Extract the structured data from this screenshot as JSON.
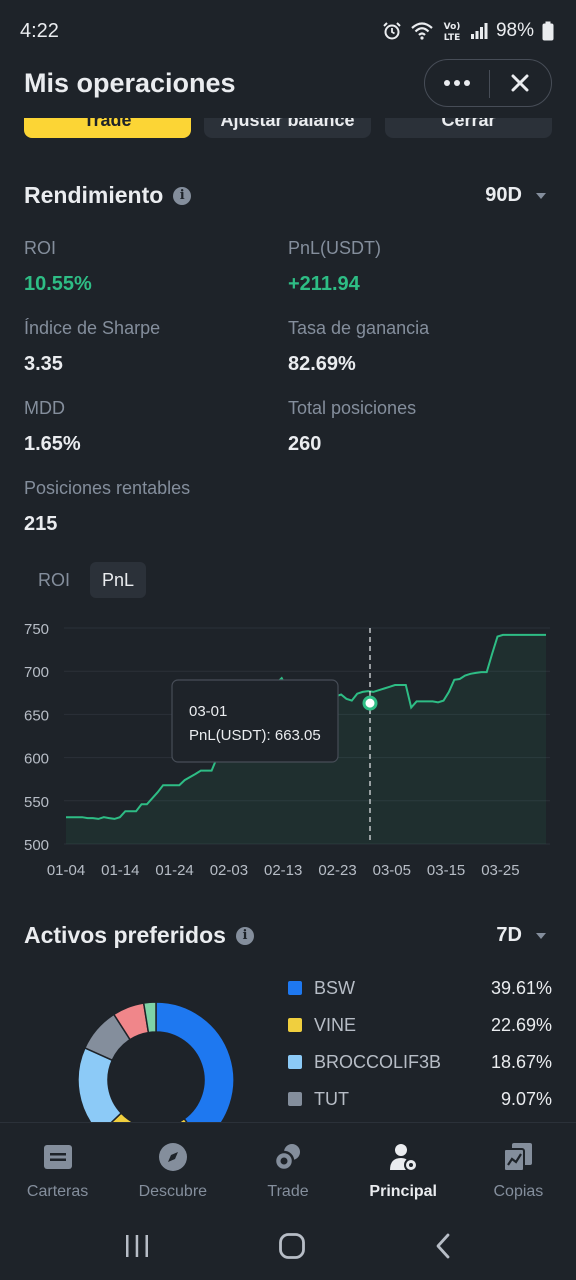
{
  "status_bar": {
    "time": "4:22",
    "battery": "98%"
  },
  "header": {
    "title": "Mis operaciones",
    "more_label": "•••",
    "close_label": "✕"
  },
  "top_tabs": [
    "Trade",
    "Ajustar balance",
    "Cerrar"
  ],
  "performance": {
    "title": "Rendimiento",
    "period": "90D",
    "stats": {
      "roi": {
        "label": "ROI",
        "value": "10.55%"
      },
      "pnl": {
        "label": "PnL(USDT)",
        "value": "+211.94"
      },
      "sharpe": {
        "label": "Índice de Sharpe",
        "value": "3.35"
      },
      "win_rate": {
        "label": "Tasa de ganancia",
        "value": "82.69%"
      },
      "mdd": {
        "label": "MDD",
        "value": "1.65%"
      },
      "total_positions": {
        "label": "Total posiciones",
        "value": "260"
      },
      "profitable_positions": {
        "label": "Posiciones rentables",
        "value": "215"
      }
    },
    "chart_tabs": [
      "ROI",
      "PnL"
    ],
    "active_chart_tab": "PnL"
  },
  "tooltip": {
    "date": "03-01",
    "label": "PnL(USDT): 663.05"
  },
  "chart_data": {
    "type": "area",
    "title": "",
    "xlabel": "",
    "ylabel": "",
    "ylim": [
      500,
      750
    ],
    "y_ticks": [
      "750",
      "700",
      "650",
      "600",
      "550",
      "500"
    ],
    "x_ticks": [
      "01-04",
      "01-14",
      "01-24",
      "02-03",
      "02-13",
      "02-23",
      "03-05",
      "03-15",
      "03-25"
    ],
    "line_color": "#2ebd85",
    "grid": true,
    "series": [
      {
        "x": [
          0,
          3,
          4,
          5,
          6,
          7,
          8,
          9,
          10,
          11,
          12,
          13,
          14,
          15,
          17,
          18,
          20,
          21,
          22,
          24,
          25,
          26,
          27,
          28,
          29,
          30,
          31,
          32,
          33,
          34,
          35,
          36,
          37,
          39,
          40,
          41,
          42,
          43,
          44,
          45,
          46,
          47,
          48,
          49,
          50,
          51,
          52,
          53,
          54,
          55,
          56,
          57,
          58,
          59,
          60,
          61,
          62,
          63,
          64,
          65,
          66,
          67,
          68,
          69,
          70,
          71,
          72,
          73,
          74,
          75,
          76,
          77,
          78,
          79,
          80,
          81,
          82,
          83,
          84,
          85,
          86,
          87,
          88,
          89
        ],
        "values": [
          531,
          531,
          530,
          530,
          529,
          531,
          530,
          529,
          531,
          538,
          538,
          538,
          546,
          546,
          560,
          568,
          568,
          568,
          574,
          581,
          585,
          585,
          585,
          600,
          618,
          626,
          634,
          642,
          646,
          658,
          664,
          666,
          674,
          686,
          692,
          680,
          666,
          665,
          666,
          664,
          663,
          668,
          670,
          668,
          671,
          673,
          668,
          666,
          674,
          676,
          677,
          676,
          678,
          680,
          682,
          684,
          684,
          684,
          658,
          665,
          665,
          665,
          665,
          664,
          666,
          676,
          690,
          691,
          695,
          697,
          698,
          699,
          699,
          720,
          740,
          742,
          742,
          742,
          742,
          742,
          742,
          742,
          742,
          742
        ]
      }
    ],
    "highlight": {
      "date": "03-01",
      "value": 663.05
    }
  },
  "preferred_assets": {
    "title": "Activos preferidos",
    "period": "7D",
    "items": [
      {
        "name": "BSW",
        "pct": "39.61%",
        "value": 39.61,
        "color": "#1e78f0"
      },
      {
        "name": "VINE",
        "pct": "22.69%",
        "value": 22.69,
        "color": "#f0cf3e"
      },
      {
        "name": "BROCCOLIF3B",
        "pct": "18.67%",
        "value": 18.67,
        "color": "#8ccaf7"
      },
      {
        "name": "TUT",
        "pct": "9.07%",
        "value": 9.07,
        "color": "#848e9c"
      }
    ],
    "other_slices": [
      {
        "value": 6.5,
        "color": "#f0868a"
      },
      {
        "value": 2.5,
        "color": "#7ed3a7"
      }
    ]
  },
  "bottom_nav": [
    {
      "label": "Carteras",
      "icon": "wallet-icon"
    },
    {
      "label": "Descubre",
      "icon": "compass-icon"
    },
    {
      "label": "Trade",
      "icon": "trade-icon"
    },
    {
      "label": "Principal",
      "icon": "principal-icon"
    },
    {
      "label": "Copias",
      "icon": "copy-icon"
    }
  ],
  "active_nav": "Principal"
}
